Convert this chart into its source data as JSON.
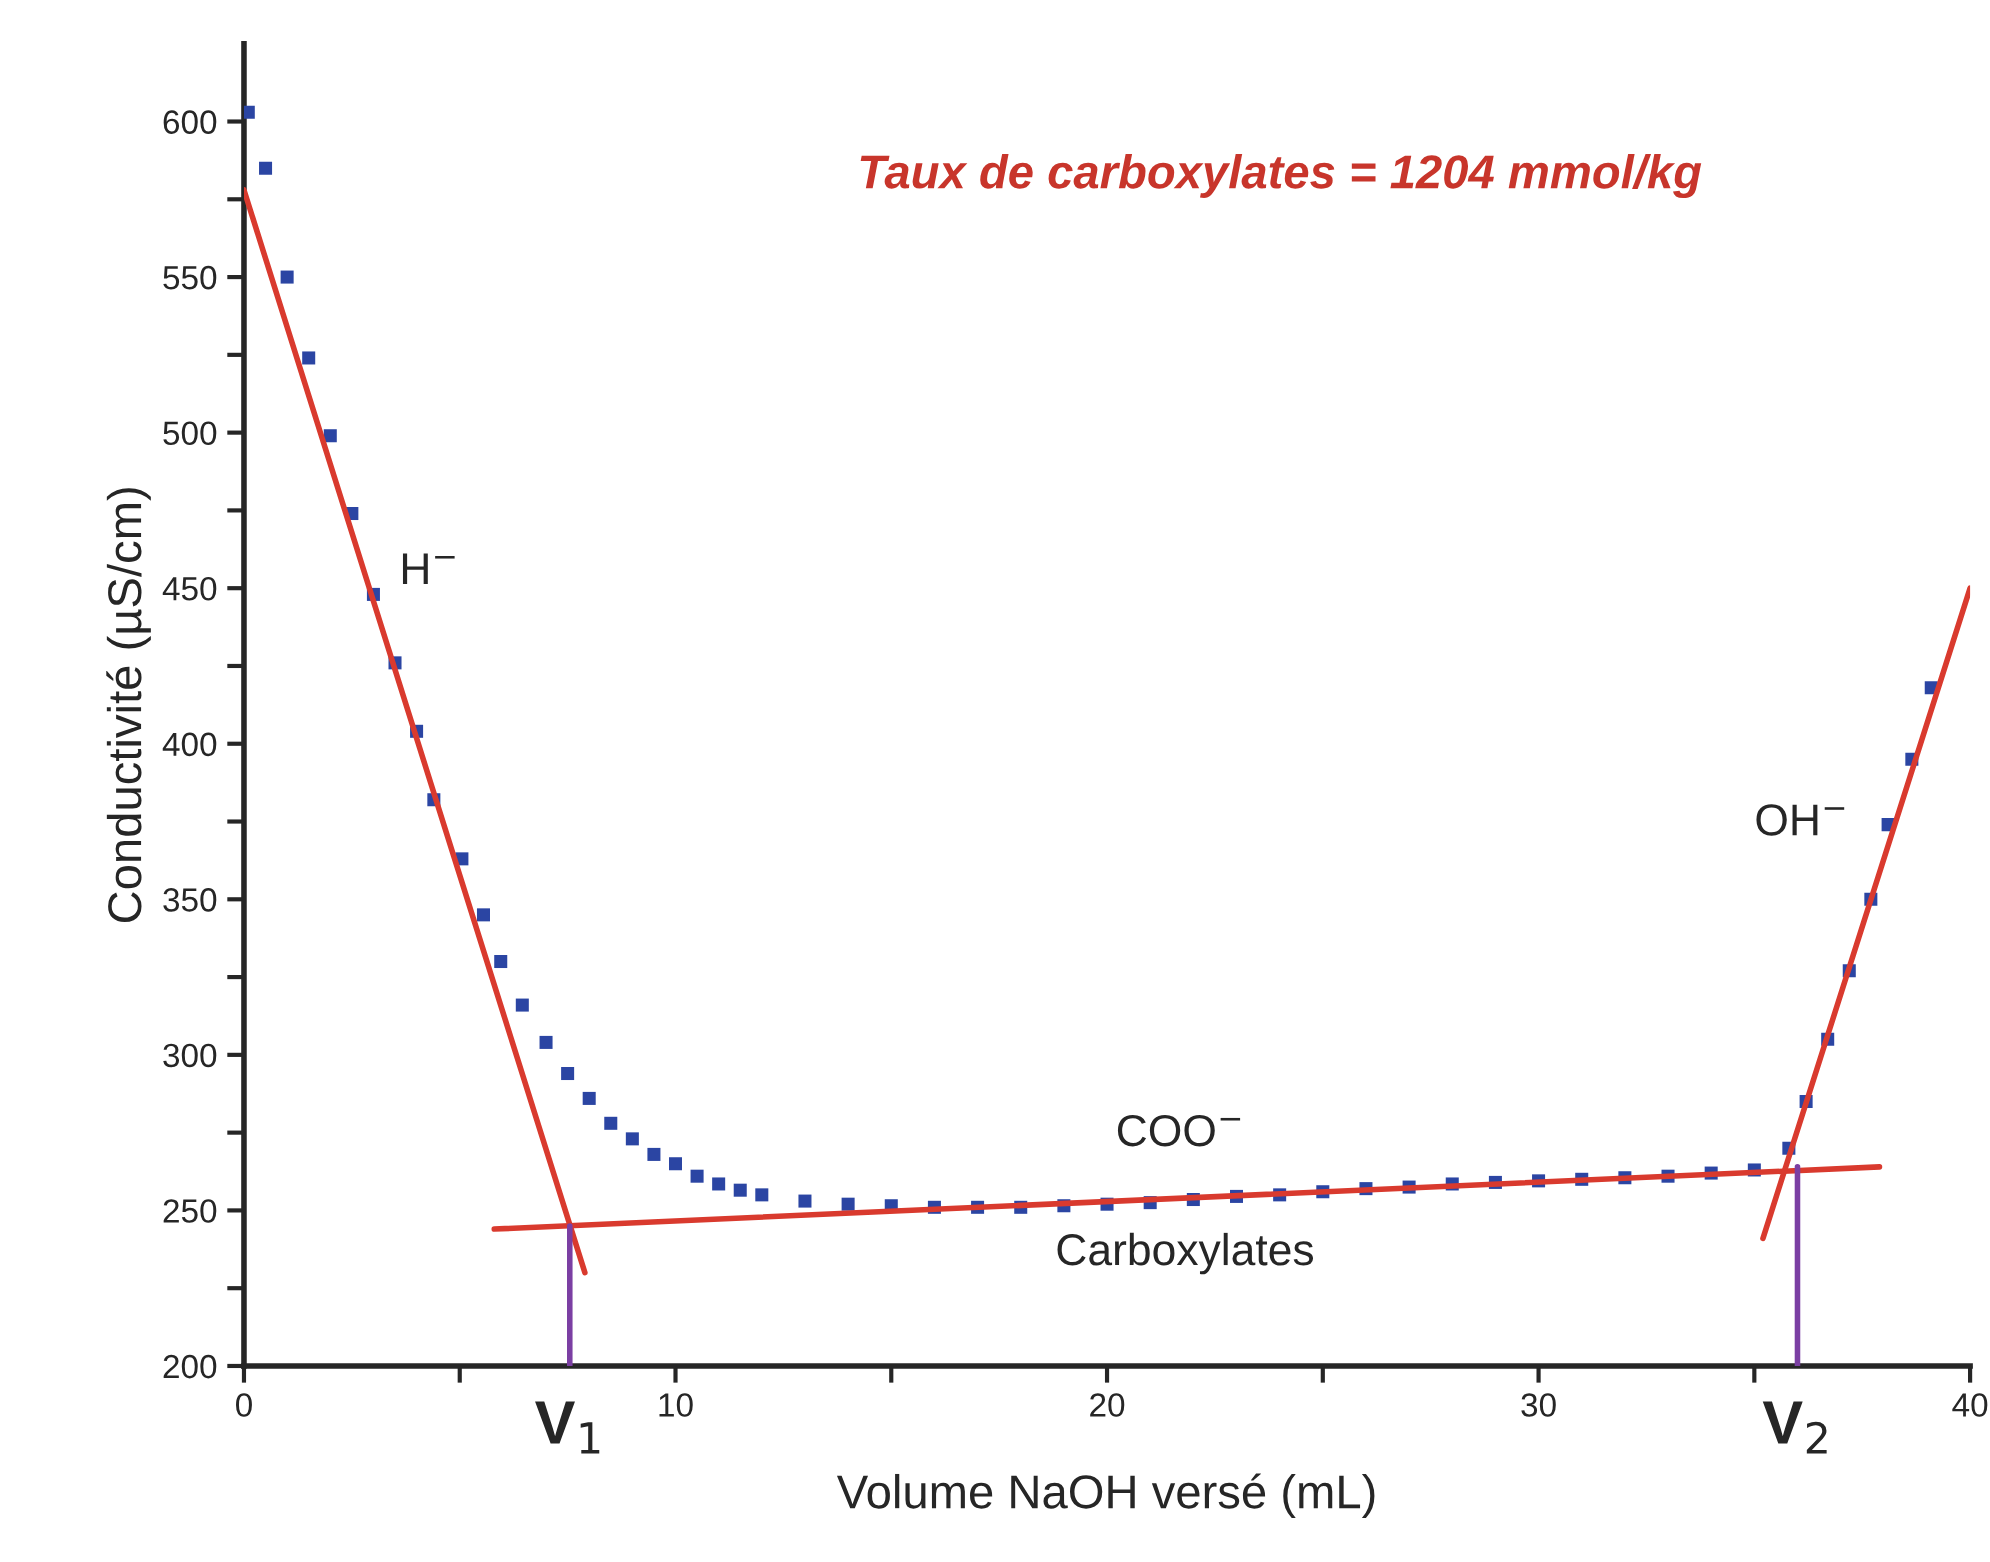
{
  "chart_data": {
    "type": "scatter",
    "title": "Taux de carboxylates = 1204 mmol/kg",
    "xlabel": "Volume NaOH versé (mL)",
    "ylabel": "Conductivité (µS/cm)",
    "xlim": [
      0,
      40
    ],
    "ylim": [
      200,
      625
    ],
    "xticks": [
      0,
      {
        "value": 5,
        "label": null
      },
      10,
      {
        "value": 15,
        "label": null
      },
      20,
      {
        "value": 25,
        "label": null
      },
      30,
      {
        "value": 35,
        "label": null
      },
      40
    ],
    "yticks": [
      200,
      {
        "value": 225,
        "label": null
      },
      250,
      {
        "value": 275,
        "label": null
      },
      300,
      {
        "value": 325,
        "label": null
      },
      350,
      {
        "value": 375,
        "label": null
      },
      400,
      {
        "value": 425,
        "label": null
      },
      450,
      {
        "value": 475,
        "label": null
      },
      500,
      {
        "value": 525,
        "label": null
      },
      550,
      {
        "value": 575,
        "label": null
      },
      600
    ],
    "grid": false,
    "legend": false,
    "series": [
      {
        "marker": "square",
        "color": "#2b45a3",
        "x": [
          0.1,
          0.5,
          1,
          1.5,
          2,
          2.5,
          3,
          3.5,
          4,
          4.4,
          5.05,
          5.55,
          5.95,
          6.45,
          7.0,
          7.5,
          8.0,
          8.5,
          9.0,
          9.5,
          10,
          10.5,
          11,
          11.5,
          12,
          13,
          14,
          15,
          16,
          17,
          18,
          19,
          20,
          21,
          22,
          23,
          24,
          25,
          26,
          27,
          28,
          29,
          30,
          31,
          32,
          33,
          34,
          35,
          35.8,
          36.2,
          36.7,
          37.2,
          37.7,
          38.1,
          38.65,
          39.1
        ],
        "values": [
          603,
          585,
          550,
          524,
          499,
          474,
          448,
          426,
          404,
          382,
          363,
          345,
          330,
          316,
          304,
          294,
          286,
          278,
          273,
          268,
          265,
          261,
          258.5,
          256.5,
          255,
          253,
          252,
          251.5,
          251,
          251,
          251,
          251.5,
          252,
          252.5,
          253.5,
          254.5,
          255,
          256,
          257,
          257.5,
          258.5,
          259,
          259.5,
          260,
          260.5,
          261,
          262,
          263,
          270,
          285,
          305,
          327,
          350,
          374,
          395,
          418
        ]
      },
      {
        "type": "line",
        "color": "#d93a2e",
        "x": [
          0,
          7.9
        ],
        "values": [
          578,
          230
        ]
      },
      {
        "type": "line",
        "color": "#d93a2e",
        "x": [
          5.8,
          37.9
        ],
        "values": [
          244,
          264
        ]
      },
      {
        "type": "line",
        "color": "#d93a2e",
        "x": [
          35.2,
          40
        ],
        "values": [
          241,
          450
        ]
      },
      {
        "type": "line",
        "color": "#7b3fa3",
        "x": [
          7.55,
          7.55
        ],
        "values": [
          200,
          245
        ]
      },
      {
        "type": "line",
        "color": "#7b3fa3",
        "x": [
          36.0,
          36.0
        ],
        "values": [
          200,
          264
        ]
      }
    ],
    "annotations": [
      "H$^{−}$",
      "OH$^{−}$",
      "COO$^{−}$",
      "Carboxylates",
      {
        "text": "V$_{1}$",
        "x": 7.55,
        "y": 200
      },
      {
        "text": "V$_{2}$",
        "x": 36.0,
        "y": 200
      }
    ]
  }
}
